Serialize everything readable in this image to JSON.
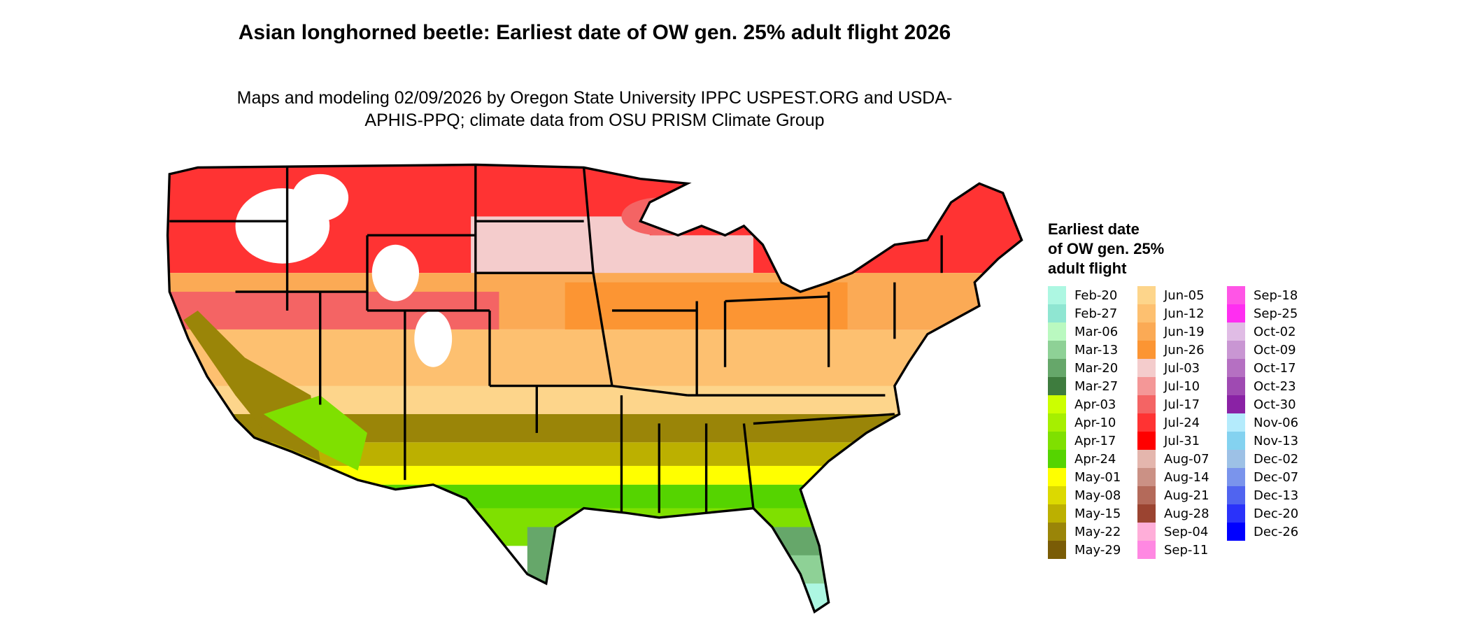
{
  "title": "Asian longhorned beetle: Earliest date of OW gen. 25% adult flight 2026",
  "subtitle": "Maps and modeling 02/09/2026 by Oregon State University IPPC USPEST.ORG and USDA-APHIS-PPQ; climate data from OSU PRISM Climate Group",
  "legend": {
    "title": "Earliest date of OW gen. 25% adult flight",
    "columns": [
      [
        {
          "label": "Feb-20",
          "color": "#adf7e2"
        },
        {
          "label": "Feb-27",
          "color": "#8fe6d2"
        },
        {
          "label": "Mar-06",
          "color": "#baf9c0"
        },
        {
          "label": "Mar-13",
          "color": "#8ed196"
        },
        {
          "label": "Mar-20",
          "color": "#66a76a"
        },
        {
          "label": "Mar-27",
          "color": "#3e7c3e"
        },
        {
          "label": "Apr-03",
          "color": "#ccff00"
        },
        {
          "label": "Apr-10",
          "color": "#a6ef00"
        },
        {
          "label": "Apr-17",
          "color": "#7fe000"
        },
        {
          "label": "Apr-24",
          "color": "#55d400"
        },
        {
          "label": "May-01",
          "color": "#ffff00"
        },
        {
          "label": "May-08",
          "color": "#dcd900"
        },
        {
          "label": "May-15",
          "color": "#bcb000"
        },
        {
          "label": "May-22",
          "color": "#9a8508"
        },
        {
          "label": "May-29",
          "color": "#7a5c06"
        }
      ],
      [
        {
          "label": "Jun-05",
          "color": "#fdd58b"
        },
        {
          "label": "Jun-12",
          "color": "#fdc070"
        },
        {
          "label": "Jun-19",
          "color": "#fbaa55"
        },
        {
          "label": "Jun-26",
          "color": "#fc9533"
        },
        {
          "label": "Jul-03",
          "color": "#f4cccc"
        },
        {
          "label": "Jul-10",
          "color": "#f49797"
        },
        {
          "label": "Jul-17",
          "color": "#f46464"
        },
        {
          "label": "Jul-24",
          "color": "#ff3333"
        },
        {
          "label": "Jul-31",
          "color": "#ff0000"
        },
        {
          "label": "Aug-07",
          "color": "#e4b6ad"
        },
        {
          "label": "Aug-14",
          "color": "#cb9185"
        },
        {
          "label": "Aug-21",
          "color": "#b46a5a"
        },
        {
          "label": "Aug-28",
          "color": "#9b4431"
        },
        {
          "label": "Sep-04",
          "color": "#ffaed9"
        },
        {
          "label": "Sep-11",
          "color": "#ff88e2"
        }
      ],
      [
        {
          "label": "Sep-18",
          "color": "#ff55e6"
        },
        {
          "label": "Sep-25",
          "color": "#ff2ef1"
        },
        {
          "label": "Oct-02",
          "color": "#e0bce5"
        },
        {
          "label": "Oct-09",
          "color": "#c996d3"
        },
        {
          "label": "Oct-17",
          "color": "#b570c2"
        },
        {
          "label": "Oct-23",
          "color": "#9f4ab2"
        },
        {
          "label": "Oct-30",
          "color": "#8a22a5"
        },
        {
          "label": "Nov-06",
          "color": "#b4ebfc"
        },
        {
          "label": "Nov-13",
          "color": "#84d2f0"
        },
        {
          "label": "Dec-02",
          "color": "#9dc1e6"
        },
        {
          "label": "Dec-07",
          "color": "#7a94ec"
        },
        {
          "label": "Dec-13",
          "color": "#5064f0"
        },
        {
          "label": "Dec-20",
          "color": "#2a32fa"
        },
        {
          "label": "Dec-26",
          "color": "#0000ff"
        }
      ]
    ]
  }
}
